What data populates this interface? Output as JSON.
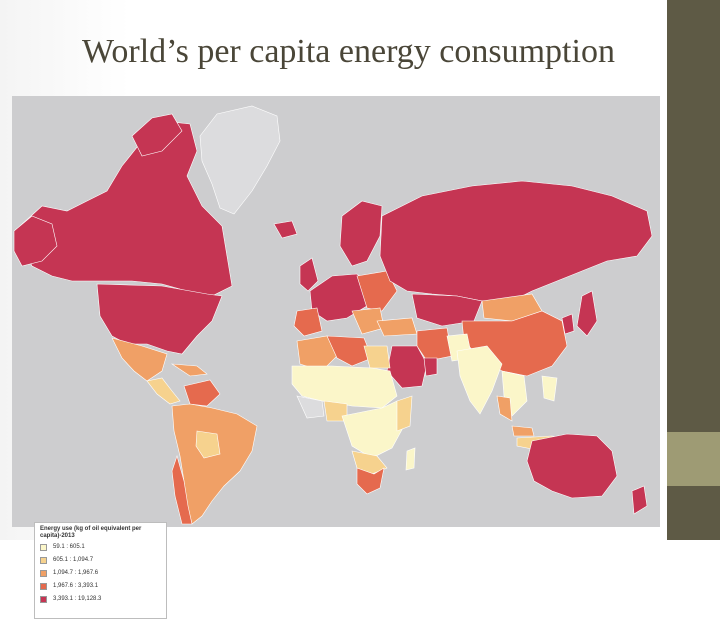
{
  "slide": {
    "title": "World’s per capita energy consumption"
  },
  "map": {
    "colors": {
      "ocean": "#cdcdcf",
      "no_data": "#dcdcde",
      "class1": "#fbf6c9",
      "class2": "#f6d28e",
      "class3": "#f0a066",
      "class4": "#e56a4e",
      "class5": "#c53553"
    },
    "legend": {
      "title": "Energy use (kg of oil equivalent per capita)-2013",
      "items": [
        {
          "label": "59.1 : 605.1",
          "color": "#fbf6c9"
        },
        {
          "label": "605.1 : 1,094.7",
          "color": "#f6d28e"
        },
        {
          "label": "1,094.7 : 1,967.6",
          "color": "#f0a066"
        },
        {
          "label": "1,967.6 : 3,393.1",
          "color": "#e56a4e"
        },
        {
          "label": "3,393.1 : 19,128.3",
          "color": "#c53553"
        }
      ]
    }
  }
}
